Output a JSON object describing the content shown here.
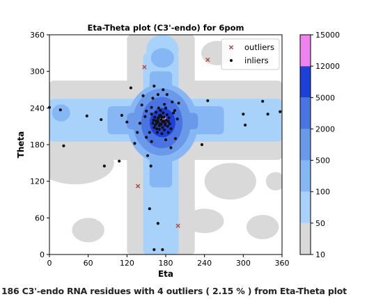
{
  "caption": "186 C3'-endo RNA residues with 4 outliers ( 2.15 % ) from Eta-Theta plot",
  "chart_data": {
    "type": "scatter",
    "title": "Eta-Theta plot (C3'-endo) for 6pom",
    "xlabel": "Eta",
    "ylabel": "Theta",
    "xlim": [
      0,
      360
    ],
    "ylim": [
      0,
      360
    ],
    "xticks": [
      "0",
      "60",
      "120",
      "180",
      "240",
      "300",
      "360"
    ],
    "yticks": [
      "0",
      "60",
      "120",
      "180",
      "240",
      "300",
      "360"
    ],
    "grid": false,
    "legend_position": "top-right",
    "background_density": {
      "type": "filled-contour",
      "levels": [
        10,
        50,
        100,
        500,
        2000,
        5000,
        12000,
        15000
      ],
      "level_labels": [
        "10",
        "50",
        "100",
        "500",
        "2000",
        "5000",
        "12000",
        "15000"
      ],
      "colors": [
        "#d9d9d9",
        "#a9d2fb",
        "#86b6f4",
        "#6a99ea",
        "#4a74e2",
        "#1f40d6",
        "#ee82ee"
      ]
    },
    "series": [
      {
        "name": "outliers",
        "marker": "x",
        "color": "#b44a4a",
        "points": [
          [
            147,
            307
          ],
          [
            245,
            319
          ],
          [
            137,
            112
          ],
          [
            199,
            47
          ]
        ]
      },
      {
        "name": "inliers",
        "marker": "dot",
        "color": "#111111",
        "points": [
          [
            0,
            241
          ],
          [
            17,
            237
          ],
          [
            22,
            178
          ],
          [
            58,
            227
          ],
          [
            80,
            221
          ],
          [
            85,
            145
          ],
          [
            108,
            153
          ],
          [
            112,
            228
          ],
          [
            120,
            217
          ],
          [
            126,
            273
          ],
          [
            132,
            182
          ],
          [
            136,
            200
          ],
          [
            145,
            260
          ],
          [
            148,
            226
          ],
          [
            150,
            192
          ],
          [
            152,
            162
          ],
          [
            157,
            145
          ],
          [
            158,
            241
          ],
          [
            160,
            256
          ],
          [
            162,
            276
          ],
          [
            165,
            233
          ],
          [
            168,
            262
          ],
          [
            170,
            205
          ],
          [
            172,
            228
          ],
          [
            176,
            270
          ],
          [
            178,
            246
          ],
          [
            182,
            262
          ],
          [
            184,
            200
          ],
          [
            188,
            175
          ],
          [
            194,
            236
          ],
          [
            198,
            222
          ],
          [
            200,
            248
          ],
          [
            155,
            75
          ],
          [
            168,
            51
          ],
          [
            162,
            8
          ],
          [
            175,
            8
          ],
          [
            236,
            180
          ],
          [
            245,
            252
          ],
          [
            300,
            230
          ],
          [
            303,
            212
          ],
          [
            330,
            251
          ],
          [
            338,
            230
          ],
          [
            357,
            234
          ],
          [
            158,
            230
          ],
          [
            161,
            220
          ],
          [
            164,
            212
          ],
          [
            166,
            206
          ],
          [
            168,
            218
          ],
          [
            170,
            226
          ],
          [
            171,
            214
          ],
          [
            173,
            221
          ],
          [
            175,
            208
          ],
          [
            177,
            225
          ],
          [
            179,
            215
          ],
          [
            181,
            220
          ],
          [
            183,
            210
          ],
          [
            185,
            224
          ],
          [
            176,
            232
          ],
          [
            169,
            240
          ],
          [
            174,
            198
          ],
          [
            180,
            240
          ],
          [
            163,
            225
          ],
          [
            186,
            214
          ],
          [
            172,
            236
          ],
          [
            167,
            200
          ],
          [
            178,
            204
          ],
          [
            160,
            215
          ],
          [
            182,
            229
          ],
          [
            175,
            217
          ],
          [
            170,
            211
          ],
          [
            165,
            219
          ],
          [
            173,
            213
          ],
          [
            177,
            219
          ],
          [
            168,
            223
          ],
          [
            179,
            212
          ],
          [
            171,
            228
          ],
          [
            166,
            215
          ],
          [
            184,
            218
          ],
          [
            174,
            225
          ],
          [
            162,
            208
          ],
          [
            188,
            206
          ],
          [
            192,
            232
          ],
          [
            150,
            235
          ],
          [
            155,
            200
          ],
          [
            140,
            215
          ],
          [
            195,
            190
          ],
          [
            190,
            250
          ],
          [
            180,
            188
          ],
          [
            158,
            185
          ],
          [
            143,
            245
          ]
        ]
      }
    ]
  }
}
